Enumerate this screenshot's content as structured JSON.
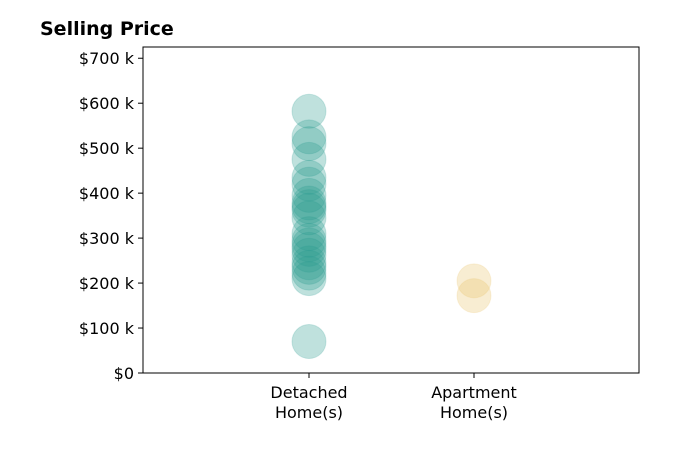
{
  "chart_data": {
    "type": "scatter",
    "title": "Selling Price",
    "xlabel": "",
    "ylabel": "",
    "categories": [
      [
        "Detached",
        "Home(s)"
      ],
      [
        "Apartment",
        "Home(s)"
      ]
    ],
    "ylim": [
      0,
      725000
    ],
    "yticks": [
      0,
      100000,
      200000,
      300000,
      400000,
      500000,
      600000,
      700000
    ],
    "ytick_labels": [
      "$0",
      "$100 k",
      "$200 k",
      "$300 k",
      "$400 k",
      "$500 k",
      "$600 k",
      "$700 k"
    ],
    "grid": false,
    "series": [
      {
        "category_index": 0,
        "color": "#2a9d8f",
        "values": [
          582000,
          525000,
          510000,
          475000,
          435000,
          420000,
          395000,
          378000,
          370000,
          362000,
          345000,
          310000,
          295000,
          285000,
          275000,
          262000,
          245000,
          235000,
          222000,
          210000,
          70000
        ]
      },
      {
        "category_index": 1,
        "color": "#e9c46a",
        "values": [
          205000,
          172000
        ]
      }
    ]
  }
}
